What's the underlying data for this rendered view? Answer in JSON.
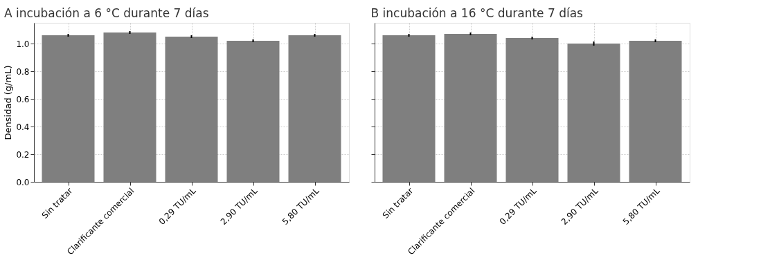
{
  "chart_data": [
    {
      "type": "bar",
      "title": "A incubación a 6 °C durante 7 días",
      "ylabel": "Densidad (g/mL)",
      "categories": [
        "Sin tratar",
        "Clarificante comercial",
        "0,29 TU/mL",
        "2,90 TU/mL",
        "5,80 TU/mL"
      ],
      "values": [
        1.06,
        1.08,
        1.05,
        1.02,
        1.06
      ],
      "errors": [
        0.01,
        0.01,
        0.01,
        0.01,
        0.01
      ],
      "color": "#7f7f7f",
      "ylim": [
        0,
        1.15
      ],
      "yticks": [
        {
          "value": 0,
          "label": "0.0"
        },
        {
          "value": 0.2,
          "label": "0.2"
        },
        {
          "value": 0.4,
          "label": "0.4"
        },
        {
          "value": 0.6,
          "label": "0.6"
        },
        {
          "value": 0.8,
          "label": "0.8"
        },
        {
          "value": 1,
          "label": "1.0"
        }
      ],
      "grid": true
    },
    {
      "type": "bar",
      "title": "B incubación a 16 °C durante 7 días",
      "categories": [
        "Sin tratar",
        "Clarificante comercial",
        "0,29 TU/mL",
        "2,90 TU/mL",
        "5,80 TU/mL"
      ],
      "values": [
        1.06,
        1.07,
        1.04,
        1.0,
        1.02
      ],
      "errors": [
        0.01,
        0.01,
        0.01,
        0.015,
        0.01
      ],
      "color": "#7f7f7f",
      "ylim": [
        0,
        1.15
      ],
      "yticks": [
        0,
        0.2,
        0.4,
        0.6,
        0.8,
        1
      ],
      "grid": true,
      "tick_labels": "x"
    }
  ]
}
